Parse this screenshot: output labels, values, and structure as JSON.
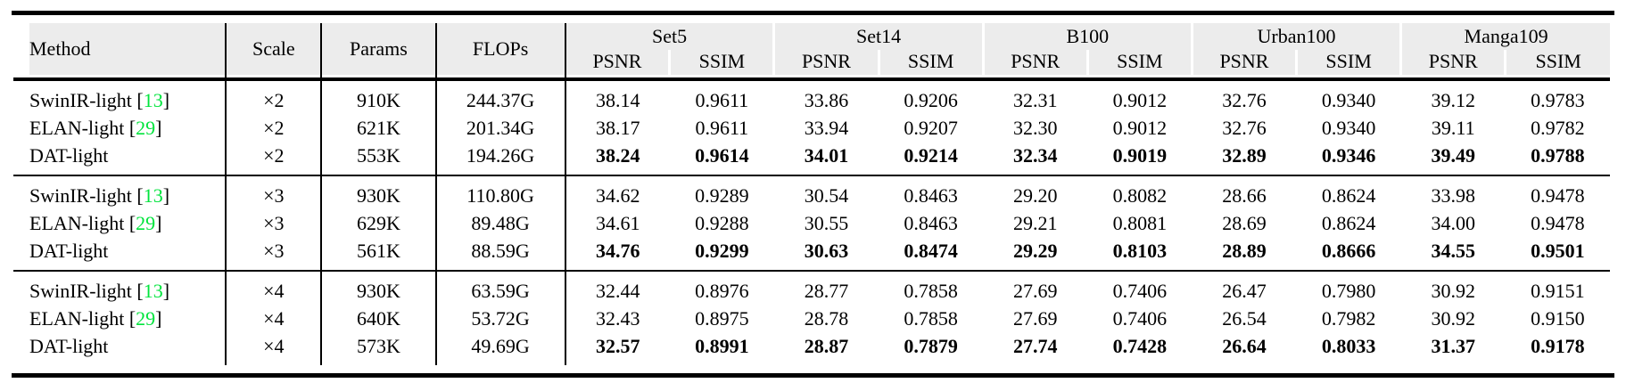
{
  "table": {
    "colors": {
      "header_bg": "#ececec",
      "citation": "#00e43c",
      "rule": "#000000"
    },
    "citation": {
      "open": "[",
      "close": "]"
    },
    "header": {
      "method": "Method",
      "scale": "Scale",
      "params": "Params",
      "flops": "FLOPs",
      "psnr": "PSNR",
      "ssim": "SSIM",
      "datasets": [
        "Set5",
        "Set14",
        "B100",
        "Urban100",
        "Manga109"
      ]
    },
    "blocks": [
      {
        "rows": [
          {
            "method": "SwinIR-light",
            "cite": "13",
            "scale": "×2",
            "params": "910K",
            "flops": "244.37G",
            "bold": false,
            "values": [
              "38.14",
              "0.9611",
              "33.86",
              "0.9206",
              "32.31",
              "0.9012",
              "32.76",
              "0.9340",
              "39.12",
              "0.9783"
            ]
          },
          {
            "method": "ELAN-light",
            "cite": "29",
            "scale": "×2",
            "params": "621K",
            "flops": "201.34G",
            "bold": false,
            "values": [
              "38.17",
              "0.9611",
              "33.94",
              "0.9207",
              "32.30",
              "0.9012",
              "32.76",
              "0.9340",
              "39.11",
              "0.9782"
            ]
          },
          {
            "method": "DAT-light",
            "cite": null,
            "scale": "×2",
            "params": "553K",
            "flops": "194.26G",
            "bold": true,
            "values": [
              "38.24",
              "0.9614",
              "34.01",
              "0.9214",
              "32.34",
              "0.9019",
              "32.89",
              "0.9346",
              "39.49",
              "0.9788"
            ]
          }
        ]
      },
      {
        "rows": [
          {
            "method": "SwinIR-light",
            "cite": "13",
            "scale": "×3",
            "params": "930K",
            "flops": "110.80G",
            "bold": false,
            "values": [
              "34.62",
              "0.9289",
              "30.54",
              "0.8463",
              "29.20",
              "0.8082",
              "28.66",
              "0.8624",
              "33.98",
              "0.9478"
            ]
          },
          {
            "method": "ELAN-light",
            "cite": "29",
            "scale": "×3",
            "params": "629K",
            "flops": "89.48G",
            "bold": false,
            "values": [
              "34.61",
              "0.9288",
              "30.55",
              "0.8463",
              "29.21",
              "0.8081",
              "28.69",
              "0.8624",
              "34.00",
              "0.9478"
            ]
          },
          {
            "method": "DAT-light",
            "cite": null,
            "scale": "×3",
            "params": "561K",
            "flops": "88.59G",
            "bold": true,
            "values": [
              "34.76",
              "0.9299",
              "30.63",
              "0.8474",
              "29.29",
              "0.8103",
              "28.89",
              "0.8666",
              "34.55",
              "0.9501"
            ]
          }
        ]
      },
      {
        "rows": [
          {
            "method": "SwinIR-light",
            "cite": "13",
            "scale": "×4",
            "params": "930K",
            "flops": "63.59G",
            "bold": false,
            "values": [
              "32.44",
              "0.8976",
              "28.77",
              "0.7858",
              "27.69",
              "0.7406",
              "26.47",
              "0.7980",
              "30.92",
              "0.9151"
            ]
          },
          {
            "method": "ELAN-light",
            "cite": "29",
            "scale": "×4",
            "params": "640K",
            "flops": "53.72G",
            "bold": false,
            "values": [
              "32.43",
              "0.8975",
              "28.78",
              "0.7858",
              "27.69",
              "0.7406",
              "26.54",
              "0.7982",
              "30.92",
              "0.9150"
            ]
          },
          {
            "method": "DAT-light",
            "cite": null,
            "scale": "×4",
            "params": "573K",
            "flops": "49.69G",
            "bold": true,
            "values": [
              "32.57",
              "0.8991",
              "28.87",
              "0.7879",
              "27.74",
              "0.7428",
              "26.64",
              "0.8033",
              "31.37",
              "0.9178"
            ]
          }
        ]
      }
    ]
  }
}
